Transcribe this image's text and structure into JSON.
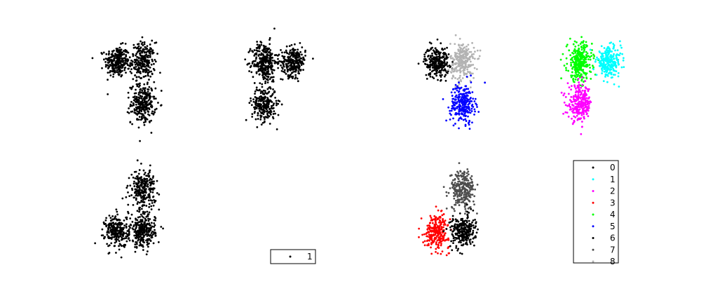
{
  "colors": {
    "0": "#000000",
    "1": "#00ffff",
    "2": "#ff00ff",
    "3": "#ff0000",
    "4": "#00ff00",
    "5": "#0000ff",
    "6": "#000000",
    "7": "#4d4d4d",
    "8": "#b3b3b3"
  },
  "chart_data": [
    {
      "type": "scatter",
      "panel": "top-1",
      "title": "",
      "xlabel": "",
      "ylabel": "",
      "grid": false,
      "axes": "off",
      "legend": null,
      "series": [
        {
          "class": "6",
          "cx": -1.6,
          "cy": 1.3,
          "sx": 0.38,
          "sy": 0.48,
          "n": 260
        },
        {
          "class": "6",
          "cx": 0.0,
          "cy": 1.3,
          "sx": 0.38,
          "sy": 0.6,
          "n": 260
        },
        {
          "class": "6",
          "cx": 0.0,
          "cy": -1.3,
          "sx": 0.38,
          "sy": 0.6,
          "n": 260
        }
      ]
    },
    {
      "type": "scatter",
      "panel": "top-2",
      "title": "",
      "xlabel": "",
      "ylabel": "",
      "grid": false,
      "axes": "off",
      "legend": null,
      "series": [
        {
          "class": "6",
          "cx": -1.0,
          "cy": 1.3,
          "sx": 0.38,
          "sy": 0.6,
          "n": 300
        },
        {
          "class": "6",
          "cx": 0.8,
          "cy": 1.3,
          "sx": 0.38,
          "sy": 0.45,
          "n": 260
        },
        {
          "class": "6",
          "cx": -1.0,
          "cy": -1.3,
          "sx": 0.38,
          "sy": 0.55,
          "n": 260
        }
      ]
    },
    {
      "type": "scatter",
      "panel": "top-3",
      "title": "",
      "xlabel": "",
      "ylabel": "",
      "grid": false,
      "axes": "off",
      "legend": null,
      "series": [
        {
          "class": "6",
          "cx": -1.6,
          "cy": 1.3,
          "sx": 0.38,
          "sy": 0.48,
          "n": 260
        },
        {
          "class": "8",
          "cx": 0.0,
          "cy": 1.3,
          "sx": 0.38,
          "sy": 0.6,
          "n": 260
        },
        {
          "class": "5",
          "cx": 0.0,
          "cy": -1.3,
          "sx": 0.38,
          "sy": 0.6,
          "n": 260
        }
      ]
    },
    {
      "type": "scatter",
      "panel": "top-4",
      "title": "",
      "xlabel": "",
      "ylabel": "",
      "grid": false,
      "axes": "off",
      "legend": null,
      "series": [
        {
          "class": "4",
          "cx": -1.0,
          "cy": 1.3,
          "sx": 0.38,
          "sy": 0.6,
          "n": 300
        },
        {
          "class": "1",
          "cx": 0.8,
          "cy": 1.3,
          "sx": 0.38,
          "sy": 0.45,
          "n": 260
        },
        {
          "class": "2",
          "cx": -1.0,
          "cy": -1.3,
          "sx": 0.38,
          "sy": 0.55,
          "n": 260
        }
      ]
    },
    {
      "type": "scatter",
      "panel": "bottom-1",
      "title": "",
      "xlabel": "",
      "ylabel": "",
      "grid": false,
      "axes": "off",
      "legend": null,
      "series": [
        {
          "class": "6",
          "cx": 0.0,
          "cy": 1.3,
          "sx": 0.38,
          "sy": 0.6,
          "n": 260
        },
        {
          "class": "6",
          "cx": -1.6,
          "cy": -1.3,
          "sx": 0.38,
          "sy": 0.5,
          "n": 260
        },
        {
          "class": "6",
          "cx": 0.0,
          "cy": -1.3,
          "sx": 0.38,
          "sy": 0.5,
          "n": 260
        }
      ]
    },
    {
      "type": "scatter",
      "panel": "bottom-2",
      "title": "",
      "xlabel": "",
      "ylabel": "",
      "grid": false,
      "axes": "off",
      "legend": {
        "placement": "bottom-right",
        "entries": [
          {
            "label": "1",
            "class": "0"
          }
        ]
      },
      "series": []
    },
    {
      "type": "scatter",
      "panel": "bottom-3",
      "title": "",
      "xlabel": "",
      "ylabel": "",
      "grid": false,
      "axes": "off",
      "legend": null,
      "series": [
        {
          "class": "7",
          "cx": 0.0,
          "cy": 1.3,
          "sx": 0.38,
          "sy": 0.6,
          "n": 260
        },
        {
          "class": "3",
          "cx": -1.6,
          "cy": -1.3,
          "sx": 0.38,
          "sy": 0.5,
          "n": 260
        },
        {
          "class": "6",
          "cx": 0.0,
          "cy": -1.3,
          "sx": 0.38,
          "sy": 0.5,
          "n": 260
        }
      ]
    },
    {
      "type": "scatter",
      "panel": "bottom-4",
      "title": "",
      "xlabel": "",
      "ylabel": "",
      "grid": false,
      "axes": "off",
      "legend": {
        "placement": "center",
        "entries": [
          {
            "label": "0",
            "class": "0"
          },
          {
            "label": "1",
            "class": "1"
          },
          {
            "label": "2",
            "class": "2"
          },
          {
            "label": "3",
            "class": "3"
          },
          {
            "label": "4",
            "class": "4"
          },
          {
            "label": "5",
            "class": "5"
          },
          {
            "label": "6",
            "class": "6"
          },
          {
            "label": "7",
            "class": "7"
          },
          {
            "label": "8",
            "class": "8"
          }
        ]
      },
      "series": []
    }
  ]
}
